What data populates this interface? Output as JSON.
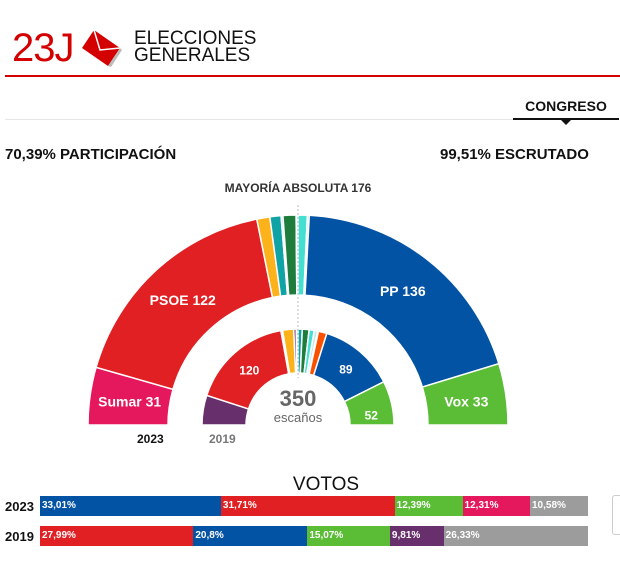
{
  "header": {
    "logo_text": "23J",
    "title_line1": "ELECCIONES",
    "title_line2": "GENERALES",
    "logo_color": "#d40000"
  },
  "tabs": [
    {
      "label": "CONGRESO",
      "active": true
    }
  ],
  "stats": {
    "participation": "70,39% PARTICIPACIÓN",
    "counted": "99,51% ESCRUTADO"
  },
  "majority": "MAYORÍA ABSOLUTA 176",
  "hemicycle": {
    "total": "350",
    "total_label": "escaños",
    "majority_seats": 176,
    "y2023_label": "2023",
    "y2019_label": "2019",
    "seats_2023": [
      {
        "seats": 31,
        "color": "#e5185d",
        "label": "Sumar",
        "value": "31"
      },
      {
        "seats": 122,
        "color": "#e02023",
        "label": "PSOE",
        "value": "122"
      },
      {
        "seats": 7,
        "color": "#fbb21b"
      },
      {
        "seats": 6,
        "color": "#0fa3a6"
      },
      {
        "seats": 1,
        "color": "#9fd2e8"
      },
      {
        "seats": 7,
        "color": "#1e7d3c"
      },
      {
        "seats": 1,
        "color": "#c9e9ef"
      },
      {
        "seats": 5,
        "color": "#45dfd1"
      },
      {
        "seats": 1,
        "color": "#9fc8e0"
      },
      {
        "seats": 136,
        "color": "#0353a4",
        "label": "PP",
        "value": "136"
      },
      {
        "seats": 33,
        "color": "#5bbd35",
        "label": "Vox",
        "value": "33"
      }
    ],
    "seats_2019": [
      {
        "seats": 35,
        "color": "#672f6c"
      },
      {
        "seats": 120,
        "color": "#e02023",
        "value": "120"
      },
      {
        "seats": 2,
        "color": "#c9e9ef"
      },
      {
        "seats": 13,
        "color": "#fbb21b"
      },
      {
        "seats": 3,
        "color": "#672f6c"
      },
      {
        "seats": 2,
        "color": "#0fa3a6"
      },
      {
        "seats": 5,
        "color": "#0fa3a6"
      },
      {
        "seats": 8,
        "color": "#1e7d3c"
      },
      {
        "seats": 6,
        "color": "#45dfd1"
      },
      {
        "seats": 4,
        "color": "#c9e9ef"
      },
      {
        "seats": 1,
        "color": "#e8a0a0"
      },
      {
        "seats": 10,
        "color": "#fa5000"
      },
      {
        "seats": 89,
        "color": "#0353a4",
        "value": "89"
      },
      {
        "seats": 52,
        "color": "#5bbd35",
        "value": "52"
      }
    ]
  },
  "votes": {
    "title": "VOTOS",
    "rows": [
      {
        "year": "2023",
        "segments": [
          {
            "pct": 33.01,
            "label": "33,01%",
            "color": "#0353a4"
          },
          {
            "pct": 31.71,
            "label": "31,71%",
            "color": "#e02023"
          },
          {
            "pct": 12.39,
            "label": "12,39%",
            "color": "#5bbd35"
          },
          {
            "pct": 12.31,
            "label": "12,31%",
            "color": "#e5185d"
          },
          {
            "pct": 10.58,
            "label": "10,58%",
            "color": "#9c9c9c"
          }
        ]
      },
      {
        "year": "2019",
        "segments": [
          {
            "pct": 27.99,
            "label": "27,99%",
            "color": "#e02023"
          },
          {
            "pct": 20.8,
            "label": "20,8%",
            "color": "#0353a4"
          },
          {
            "pct": 15.07,
            "label": "15,07%",
            "color": "#5bbd35"
          },
          {
            "pct": 9.81,
            "label": "9,81%",
            "color": "#672f6c"
          },
          {
            "pct": 26.33,
            "label": "26,33%",
            "color": "#9c9c9c"
          }
        ]
      }
    ]
  }
}
